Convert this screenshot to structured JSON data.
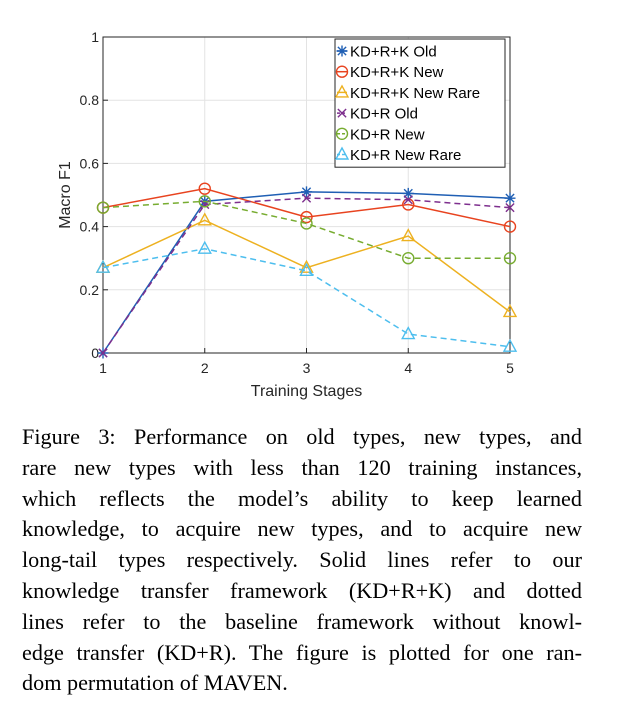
{
  "chart_data": {
    "type": "line",
    "xlabel": "Training Stages",
    "ylabel": "Macro F1",
    "x": [
      1,
      2,
      3,
      4,
      5
    ],
    "xlim": [
      1,
      5
    ],
    "ylim": [
      0,
      1
    ],
    "xticks": [
      "1",
      "2",
      "3",
      "4",
      "5"
    ],
    "yticks": [
      "0",
      "0.2",
      "0.4",
      "0.6",
      "0.8",
      "1"
    ],
    "grid": true,
    "legend_position": "top-right",
    "series": [
      {
        "name": "KD+R+K Old",
        "values": [
          0.0,
          0.48,
          0.51,
          0.505,
          0.49
        ],
        "color": "#1f5fb4",
        "marker": "asterisk",
        "dash": "solid"
      },
      {
        "name": "KD+R+K New",
        "values": [
          0.46,
          0.52,
          0.43,
          0.47,
          0.4
        ],
        "color": "#e8431f",
        "marker": "circle",
        "dash": "solid"
      },
      {
        "name": "KD+R+K New Rare",
        "values": [
          0.27,
          0.42,
          0.27,
          0.37,
          0.13
        ],
        "color": "#edb120",
        "marker": "triangle",
        "dash": "solid"
      },
      {
        "name": "KD+R Old",
        "values": [
          0.0,
          0.47,
          0.49,
          0.485,
          0.46
        ],
        "color": "#7e2f8e",
        "marker": "x",
        "dash": "dashed"
      },
      {
        "name": "KD+R New",
        "values": [
          0.46,
          0.48,
          0.41,
          0.3,
          0.3
        ],
        "color": "#77ac30",
        "marker": "circle",
        "dash": "dashed"
      },
      {
        "name": "KD+R New Rare",
        "values": [
          0.27,
          0.33,
          0.26,
          0.06,
          0.02
        ],
        "color": "#4dbeee",
        "marker": "triangle",
        "dash": "dashed"
      }
    ]
  },
  "caption": {
    "lines": [
      "Figure 3: Performance on old types, new types, and",
      "rare new types with less than 120 training instances,",
      "which reflects the model’s ability to keep learned",
      "knowledge, to acquire new types, and to acquire new",
      "long-tail types respectively. Solid lines refer to our",
      "knowledge transfer framework (KD+R+K) and dotted",
      "lines refer to the baseline framework without knowl-",
      "edge transfer (KD+R). The figure is plotted for one ran-",
      "dom permutation of MAVEN."
    ]
  }
}
